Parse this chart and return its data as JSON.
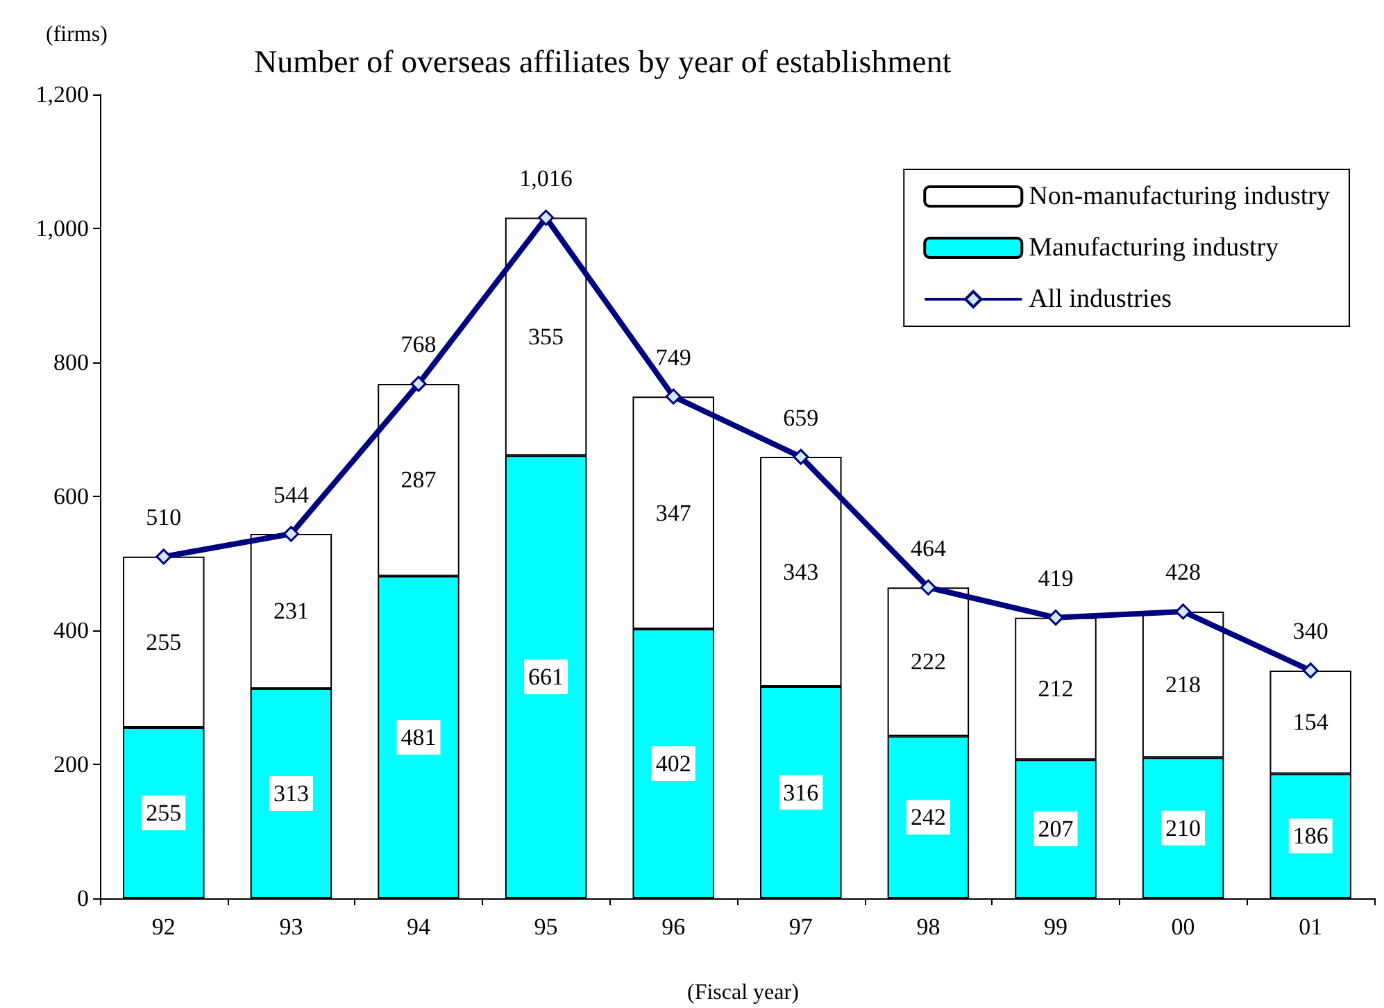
{
  "chart_data": {
    "type": "bar",
    "title": "Number of overseas affiliates by year of establishment",
    "ylabel": "(firms)",
    "xlabel": "(Fiscal year)",
    "categories": [
      "92",
      "93",
      "94",
      "95",
      "96",
      "97",
      "98",
      "99",
      "00",
      "01"
    ],
    "stacked": true,
    "series": [
      {
        "name": "Manufacturing industry",
        "color": "#00ffff",
        "values": [
          255,
          313,
          481,
          661,
          402,
          316,
          242,
          207,
          210,
          186
        ]
      },
      {
        "name": "Non-manufacturing industry",
        "color": "#ffffff",
        "values": [
          255,
          231,
          287,
          355,
          347,
          343,
          222,
          212,
          218,
          154
        ]
      },
      {
        "name": "All industries",
        "type": "line",
        "color": "#000080",
        "marker": "diamond",
        "values": [
          510,
          544,
          768,
          1016,
          749,
          659,
          464,
          419,
          428,
          340
        ],
        "value_labels": [
          "510",
          "544",
          "768",
          "1,016",
          "749",
          "659",
          "464",
          "419",
          "428",
          "340"
        ]
      }
    ],
    "ylim": [
      0,
      1200
    ],
    "yticks": [
      0,
      200,
      400,
      600,
      800,
      {
        "value": 1000,
        "label": "1,000"
      },
      {
        "value": 1200,
        "label": "1,200"
      }
    ],
    "data_labels": true,
    "grid": false,
    "legend": "top right"
  }
}
